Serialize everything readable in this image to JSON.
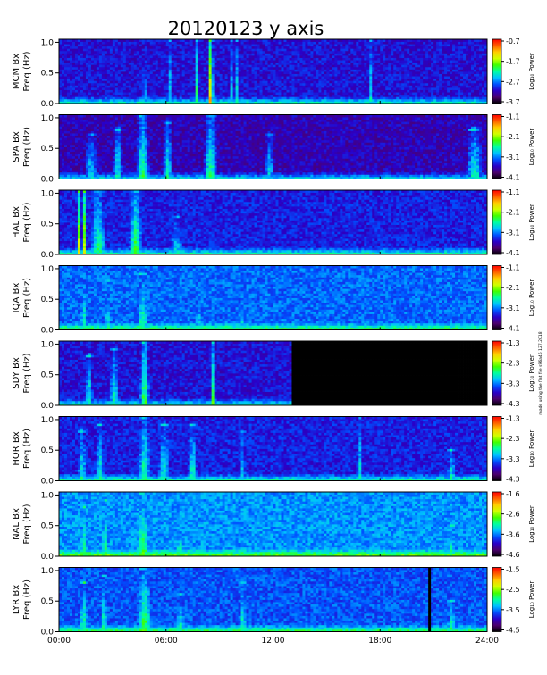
{
  "chart_data": {
    "type": "heatmap",
    "title": "20120123 y axis",
    "credit": "made using the flat file s96a46 127.2018",
    "x_ticks": [
      "00:00",
      "06:00",
      "12:00",
      "18:00",
      "24:00"
    ],
    "x_range_hours": [
      0,
      24
    ],
    "y_ticks": [
      "1.0",
      "0.5",
      "0.0"
    ],
    "y_range_hz": [
      0,
      1.05
    ],
    "colorbar_label": "Log₁₀ Power",
    "colormap": [
      "#000000",
      "#4b006e",
      "#2a00c8",
      "#0050ff",
      "#00c0ff",
      "#00ffa0",
      "#40ff00",
      "#d0ff00",
      "#ffcc00",
      "#ff6000",
      "#ff0000"
    ],
    "panels": [
      {
        "station": "MCM Bx",
        "ylabel": "Freq (Hz)",
        "cb_ticks": [
          "-0.7",
          "-1.7",
          "-2.7",
          "-3.7"
        ],
        "bg_level": 0.22,
        "bursts": [
          {
            "t": 4.8,
            "w": 0.1,
            "level": 0.6,
            "top": 1.0
          },
          {
            "t": 5.4,
            "w": 0.08,
            "level": 0.6,
            "top": 1.0
          },
          {
            "t": 6.2,
            "w": 0.06,
            "level": 0.55,
            "top": 1.0
          },
          {
            "t": 7.7,
            "w": 0.05,
            "level": 0.72,
            "top": 1.0
          },
          {
            "t": 8.5,
            "w": 0.15,
            "level": 0.85,
            "top": 1.0
          },
          {
            "t": 9.7,
            "w": 0.05,
            "level": 0.55,
            "top": 1.0
          },
          {
            "t": 10.0,
            "w": 0.05,
            "level": 0.6,
            "top": 1.0
          },
          {
            "t": 10.8,
            "w": 0.05,
            "level": 0.55,
            "top": 1.0
          },
          {
            "t": 17.5,
            "w": 0.05,
            "level": 0.6,
            "top": 1.0
          }
        ]
      },
      {
        "station": "SPA Bx",
        "ylabel": "Freq (Hz)",
        "cb_ticks": [
          "-1.1",
          "-2.1",
          "-3.1",
          "-4.1"
        ],
        "bg_level": 0.18,
        "bursts": [
          {
            "t": 1.8,
            "w": 0.4,
            "level": 0.45,
            "top": 0.7
          },
          {
            "t": 3.3,
            "w": 0.3,
            "level": 0.5,
            "top": 0.8
          },
          {
            "t": 4.7,
            "w": 0.4,
            "level": 0.55,
            "top": 1.0
          },
          {
            "t": 6.1,
            "w": 0.3,
            "level": 0.5,
            "top": 0.9
          },
          {
            "t": 8.5,
            "w": 0.4,
            "level": 0.55,
            "top": 1.0
          },
          {
            "t": 11.8,
            "w": 0.3,
            "level": 0.45,
            "top": 0.7
          },
          {
            "t": 23.3,
            "w": 0.5,
            "level": 0.5,
            "top": 0.8
          }
        ]
      },
      {
        "station": "HAL Bx",
        "ylabel": "Freq (Hz)",
        "cb_ticks": [
          "-1.1",
          "-2.1",
          "-3.1",
          "-4.1"
        ],
        "bg_level": 0.24,
        "bursts": [
          {
            "t": 1.1,
            "w": 0.1,
            "level": 0.8,
            "top": 1.0
          },
          {
            "t": 1.4,
            "w": 0.12,
            "level": 0.78,
            "top": 1.0
          },
          {
            "t": 2.2,
            "w": 0.5,
            "level": 0.55,
            "top": 1.0
          },
          {
            "t": 4.3,
            "w": 0.4,
            "level": 0.6,
            "top": 1.0
          },
          {
            "t": 6.6,
            "w": 0.5,
            "level": 0.45,
            "top": 0.6
          }
        ]
      },
      {
        "station": "IQA Bx",
        "ylabel": "Freq (Hz)",
        "cb_ticks": [
          "-1.1",
          "-2.1",
          "-3.1",
          "-4.1"
        ],
        "bg_level": 0.32,
        "bursts": [
          {
            "t": 1.4,
            "w": 0.3,
            "level": 0.5,
            "top": 0.9
          },
          {
            "t": 2.7,
            "w": 0.2,
            "level": 0.5,
            "top": 0.8
          },
          {
            "t": 4.7,
            "w": 0.4,
            "level": 0.55,
            "top": 0.9
          },
          {
            "t": 7.8,
            "w": 0.3,
            "level": 0.45,
            "top": 0.7
          },
          {
            "t": 10.3,
            "w": 0.3,
            "level": 0.45,
            "top": 0.7
          }
        ]
      },
      {
        "station": "SDY Bx",
        "ylabel": "Freq (Hz)",
        "cb_ticks": [
          "-1.3",
          "-2.3",
          "-3.3",
          "-4.3"
        ],
        "bg_level": 0.22,
        "data_end_hours": 13.0,
        "bursts": [
          {
            "t": 0.3,
            "w": 0.06,
            "level": 0.6,
            "top": 1.0
          },
          {
            "t": 1.7,
            "w": 0.25,
            "level": 0.5,
            "top": 0.8
          },
          {
            "t": 3.1,
            "w": 0.3,
            "level": 0.5,
            "top": 0.9
          },
          {
            "t": 4.8,
            "w": 0.3,
            "level": 0.6,
            "top": 1.0
          },
          {
            "t": 8.6,
            "w": 0.06,
            "level": 0.7,
            "top": 1.0
          }
        ]
      },
      {
        "station": "HOR Bx",
        "ylabel": "Freq (Hz)",
        "cb_ticks": [
          "-1.3",
          "-2.3",
          "-3.3",
          "-4.3"
        ],
        "bg_level": 0.24,
        "bursts": [
          {
            "t": 1.3,
            "w": 0.3,
            "level": 0.5,
            "top": 0.8
          },
          {
            "t": 2.3,
            "w": 0.3,
            "level": 0.5,
            "top": 0.9
          },
          {
            "t": 4.8,
            "w": 0.4,
            "level": 0.55,
            "top": 1.0
          },
          {
            "t": 5.9,
            "w": 0.4,
            "level": 0.5,
            "top": 0.9
          },
          {
            "t": 7.5,
            "w": 0.3,
            "level": 0.5,
            "top": 0.9
          },
          {
            "t": 10.3,
            "w": 0.2,
            "level": 0.45,
            "top": 0.8
          },
          {
            "t": 16.9,
            "w": 0.04,
            "level": 0.7,
            "top": 1.0
          },
          {
            "t": 22.0,
            "w": 0.3,
            "level": 0.5,
            "top": 0.5
          }
        ]
      },
      {
        "station": "NAL Bx",
        "ylabel": "Freq (Hz)",
        "cb_ticks": [
          "-1.6",
          "-2.6",
          "-3.6",
          "-4.6"
        ],
        "bg_level": 0.36,
        "bursts": [
          {
            "t": 1.4,
            "w": 0.3,
            "level": 0.55,
            "top": 0.8
          },
          {
            "t": 2.6,
            "w": 0.3,
            "level": 0.55,
            "top": 0.9
          },
          {
            "t": 4.7,
            "w": 0.5,
            "level": 0.6,
            "top": 1.0
          },
          {
            "t": 6.8,
            "w": 0.5,
            "level": 0.5,
            "top": 0.6
          },
          {
            "t": 10.2,
            "w": 0.04,
            "level": 0.6,
            "top": 1.0
          },
          {
            "t": 22.0,
            "w": 0.3,
            "level": 0.55,
            "top": 0.5
          }
        ]
      },
      {
        "station": "LYR Bx",
        "ylabel": "Freq (Hz)",
        "cb_ticks": [
          "-1.5",
          "-2.5",
          "-3.5",
          "-4.5"
        ],
        "bg_level": 0.3,
        "gap_hours": [
          20.7,
          20.9
        ],
        "bursts": [
          {
            "t": 1.4,
            "w": 0.3,
            "level": 0.55,
            "top": 0.8
          },
          {
            "t": 2.5,
            "w": 0.3,
            "level": 0.5,
            "top": 0.9
          },
          {
            "t": 4.8,
            "w": 0.5,
            "level": 0.6,
            "top": 1.0
          },
          {
            "t": 6.8,
            "w": 0.4,
            "level": 0.5,
            "top": 0.6
          },
          {
            "t": 10.3,
            "w": 0.3,
            "level": 0.5,
            "top": 0.8
          },
          {
            "t": 22.0,
            "w": 0.3,
            "level": 0.55,
            "top": 0.5
          }
        ]
      }
    ]
  }
}
